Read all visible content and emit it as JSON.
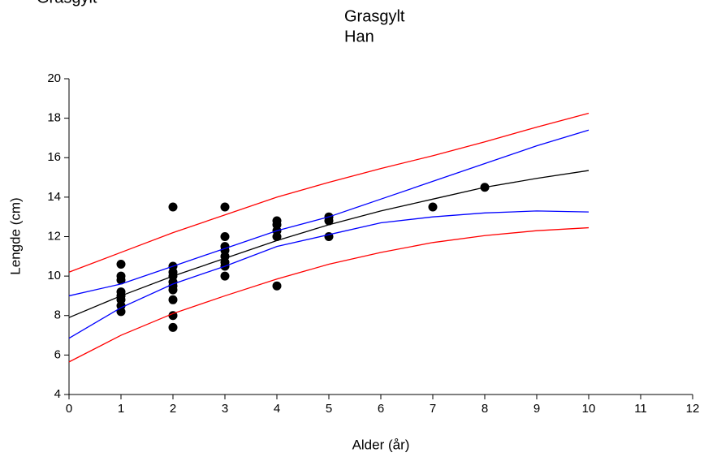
{
  "chart_data": {
    "type": "scatter",
    "top_note": "Grasgylt",
    "title": "Grasgylt",
    "subtitle": "Han",
    "xlabel": "Alder (år)",
    "ylabel": "Lengde (cm)",
    "xlim": [
      0,
      12
    ],
    "xticks": [
      0,
      1,
      2,
      3,
      4,
      5,
      6,
      7,
      8,
      9,
      10,
      11,
      12
    ],
    "ylim": [
      4,
      20
    ],
    "yticks": [
      4,
      6,
      8,
      10,
      12,
      14,
      16,
      18,
      20
    ],
    "series": [
      {
        "color": "#000000",
        "marker": "circle",
        "x": [
          1,
          1,
          1,
          1,
          1,
          1,
          1,
          1,
          2,
          2,
          2,
          2,
          2,
          2,
          2,
          2,
          2,
          2,
          3,
          3,
          3,
          3,
          3,
          3,
          3,
          3,
          4,
          4,
          4,
          4,
          4,
          5,
          5,
          5,
          7,
          8
        ],
        "values": [
          10.6,
          10,
          9.8,
          9.2,
          9,
          8.8,
          8.5,
          8.2,
          13.5,
          10.5,
          10.2,
          10,
          9.7,
          9.5,
          9.3,
          8.8,
          8,
          7.4,
          13.5,
          12,
          11.5,
          11.3,
          11,
          10.7,
          10.5,
          10,
          12.8,
          12.6,
          12.3,
          12,
          9.5,
          13,
          12.8,
          12,
          13.5,
          14.5
        ]
      },
      {
        "color": "#000000",
        "x": [
          0,
          1,
          2,
          3,
          4,
          5,
          6,
          7,
          8,
          9,
          10
        ],
        "values": [
          7.9,
          9,
          10,
          10.9,
          11.8,
          12.6,
          13.3,
          13.9,
          14.5,
          14.95,
          15.35
        ]
      },
      {
        "color": "#0000ff",
        "x": [
          0,
          1,
          2,
          3,
          4,
          5,
          6,
          7,
          8,
          9,
          10
        ],
        "values": [
          9,
          9.6,
          10.5,
          11.4,
          12.3,
          13,
          13.9,
          14.8,
          15.7,
          16.6,
          17.4
        ]
      },
      {
        "color": "#0000ff",
        "x": [
          0,
          1,
          2,
          3,
          4,
          5,
          6,
          7,
          8,
          9,
          10
        ],
        "values": [
          6.85,
          8.4,
          9.6,
          10.5,
          11.5,
          12.1,
          12.7,
          13,
          13.2,
          13.3,
          13.25
        ]
      },
      {
        "color": "#ff0000",
        "x": [
          0,
          1,
          2,
          3,
          4,
          5,
          6,
          7,
          8,
          9,
          10
        ],
        "values": [
          10.2,
          11.2,
          12.2,
          13.1,
          14,
          14.75,
          15.45,
          16.1,
          16.8,
          17.55,
          18.25
        ]
      },
      {
        "color": "#ff0000",
        "x": [
          0,
          1,
          2,
          3,
          4,
          5,
          6,
          7,
          8,
          9,
          10
        ],
        "values": [
          5.65,
          7,
          8.1,
          9,
          9.85,
          10.6,
          11.2,
          11.7,
          12.05,
          12.3,
          12.45
        ]
      }
    ]
  }
}
